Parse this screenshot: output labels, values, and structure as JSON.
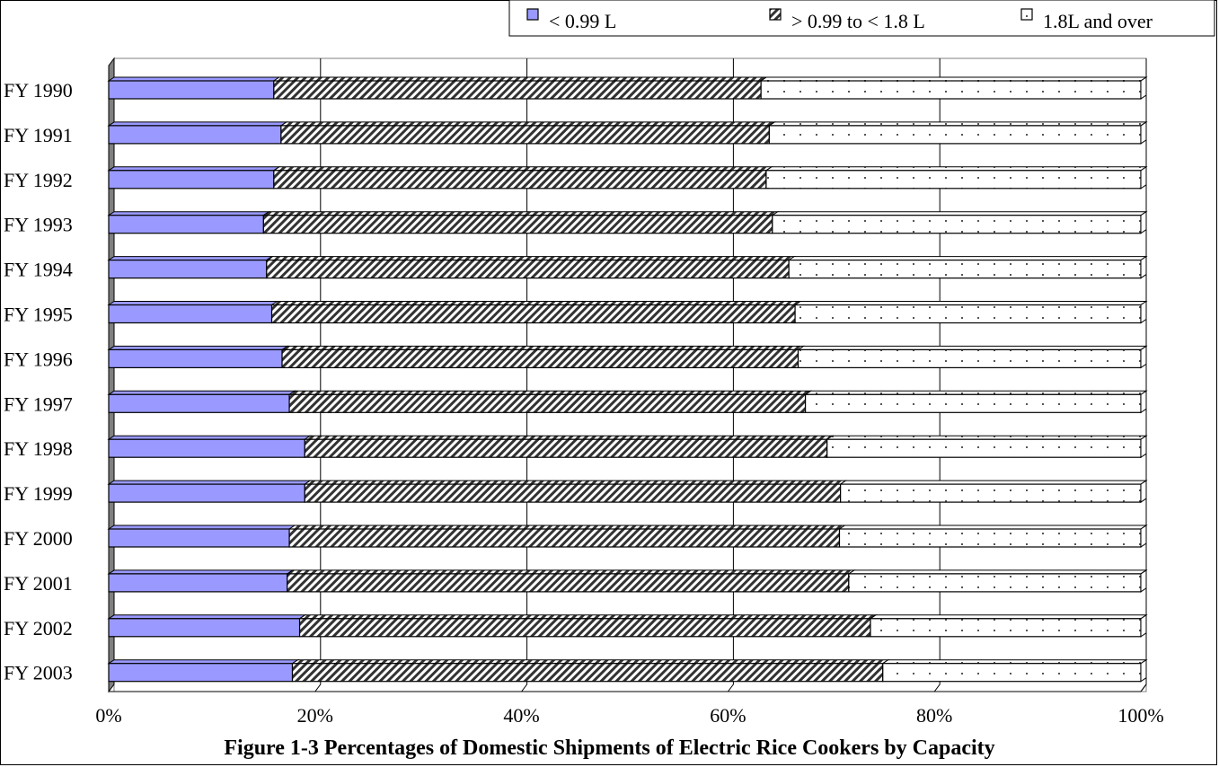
{
  "chart_data": {
    "type": "bar",
    "orientation": "horizontal",
    "stacked": "percent",
    "title": "Figure 1-3 Percentages of Domestic Shipments of Electric Rice Cookers by Capacity",
    "categories": [
      "FY 1990",
      "FY 1991",
      "FY 1992",
      "FY 1993",
      "FY 1994",
      "FY 1995",
      "FY 1996",
      "FY 1997",
      "FY 1998",
      "FY 1999",
      "FY 2000",
      "FY 2001",
      "FY 2002",
      "FY 2003"
    ],
    "series": [
      {
        "name": "< 0.99 L",
        "color": "#9999ff",
        "values": [
          16,
          16.7,
          16,
          15,
          15.3,
          15.8,
          16.8,
          17.5,
          19,
          19,
          17.5,
          17.3,
          18.5,
          17.8
        ]
      },
      {
        "name": "> 0.99 to < 1.8 L",
        "color": "#333333",
        "values": [
          47.2,
          47.3,
          47.7,
          49.3,
          50.6,
          50.7,
          50,
          50,
          50.6,
          51.9,
          53.3,
          54.4,
          55.3,
          57.2
        ]
      },
      {
        "name": "1.8L and over",
        "color": "#ffffff",
        "values": [
          36.8,
          36,
          36.3,
          35.7,
          34.1,
          33.5,
          33.2,
          32.5,
          30.4,
          29.1,
          29.2,
          28.3,
          26.2,
          25
        ]
      }
    ],
    "xlim": [
      0,
      100
    ],
    "xticks": [
      "0%",
      "20%",
      "40%",
      "60%",
      "80%",
      "100%"
    ],
    "grid": true,
    "legend_position": "top-right"
  }
}
